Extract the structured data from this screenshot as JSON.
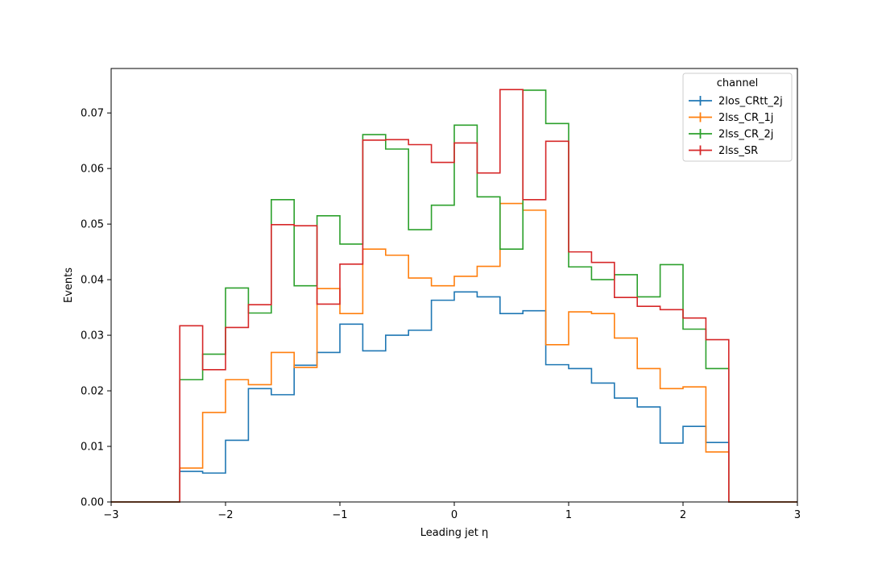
{
  "chart_data": {
    "type": "histogram-step",
    "xlabel": "Leading jet  η",
    "ylabel": "Events",
    "xlim": [
      -3,
      3
    ],
    "ylim": [
      0,
      0.078
    ],
    "x_ticks": [
      -3,
      -2,
      -1,
      0,
      1,
      2,
      3
    ],
    "x_tick_labels": [
      "−3",
      "−2",
      "−1",
      "0",
      "1",
      "2",
      "3"
    ],
    "y_ticks": [
      0.0,
      0.01,
      0.02,
      0.03,
      0.04,
      0.05,
      0.06,
      0.07
    ],
    "y_tick_labels": [
      "0.00",
      "0.01",
      "0.02",
      "0.03",
      "0.04",
      "0.05",
      "0.06",
      "0.07"
    ],
    "bin_edges": [
      -3.0,
      -2.8,
      -2.6,
      -2.4,
      -2.2,
      -2.0,
      -1.8,
      -1.6,
      -1.4,
      -1.2,
      -1.0,
      -0.8,
      -0.6,
      -0.4,
      -0.2,
      0.0,
      0.2,
      0.4,
      0.6,
      0.8,
      1.0,
      1.2,
      1.4,
      1.6,
      1.8,
      2.0,
      2.2,
      2.4,
      2.6,
      2.8,
      3.0
    ],
    "legend": {
      "title": "channel",
      "position": "top-right"
    },
    "grid": false,
    "series": [
      {
        "name": "2los_CRtt_2j",
        "color": "#1f77b4",
        "values": [
          0,
          0,
          0,
          0.0055,
          0.0052,
          0.0111,
          0.0204,
          0.0193,
          0.0246,
          0.0269,
          0.032,
          0.0272,
          0.03,
          0.0309,
          0.0363,
          0.0378,
          0.0369,
          0.0339,
          0.0344,
          0.0247,
          0.024,
          0.0214,
          0.0187,
          0.0171,
          0.0106,
          0.0136,
          0.0107,
          0,
          0,
          0
        ]
      },
      {
        "name": "2lss_CR_1j",
        "color": "#ff7f0e",
        "values": [
          0,
          0,
          0,
          0.0061,
          0.0161,
          0.022,
          0.0211,
          0.0269,
          0.0242,
          0.0384,
          0.0339,
          0.0455,
          0.0444,
          0.0403,
          0.0389,
          0.0406,
          0.0424,
          0.0537,
          0.0525,
          0.0283,
          0.0342,
          0.0339,
          0.0295,
          0.024,
          0.0204,
          0.0207,
          0.009,
          0,
          0,
          0
        ]
      },
      {
        "name": "2lss_CR_2j",
        "color": "#2ca02c",
        "values": [
          0,
          0,
          0,
          0.022,
          0.0266,
          0.0385,
          0.034,
          0.0544,
          0.0389,
          0.0515,
          0.0464,
          0.0661,
          0.0635,
          0.049,
          0.0534,
          0.0678,
          0.0549,
          0.0455,
          0.0741,
          0.0681,
          0.0423,
          0.04,
          0.0409,
          0.0369,
          0.0427,
          0.0311,
          0.024,
          0,
          0,
          0
        ]
      },
      {
        "name": "2lss_SR",
        "color": "#d62728",
        "values": [
          0,
          0,
          0,
          0.0317,
          0.0238,
          0.0314,
          0.0355,
          0.0499,
          0.0497,
          0.0356,
          0.0428,
          0.0651,
          0.0652,
          0.0643,
          0.0611,
          0.0646,
          0.0592,
          0.0742,
          0.0544,
          0.0649,
          0.045,
          0.0431,
          0.0368,
          0.0352,
          0.0346,
          0.0331,
          0.0292,
          0,
          0,
          0
        ]
      }
    ]
  }
}
